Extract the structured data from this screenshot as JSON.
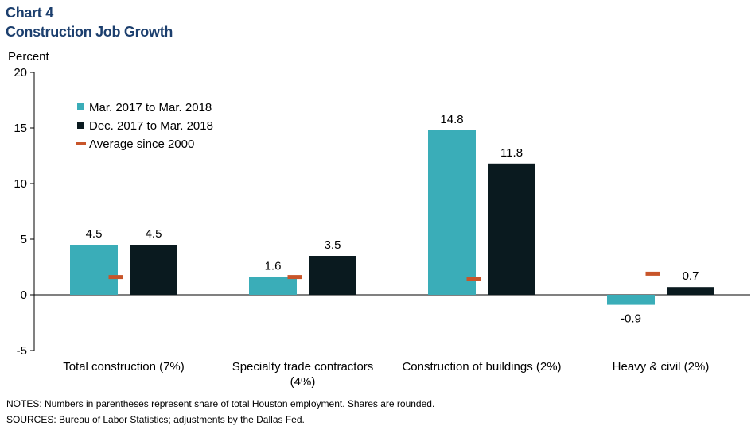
{
  "header": {
    "chart_number": "Chart 4",
    "title": "Construction Job Growth"
  },
  "chart_data": {
    "type": "bar",
    "ylabel": "Percent",
    "ylim": [
      -5,
      20
    ],
    "yticks": [
      -5,
      0,
      5,
      10,
      15,
      20
    ],
    "categories": [
      [
        "Total construction (7%)"
      ],
      [
        "Specialty trade contractors",
        "(4%)"
      ],
      [
        "Construction of buildings (2%)"
      ],
      [
        "Heavy & civil (2%)"
      ]
    ],
    "series": [
      {
        "name": "Mar. 2017 to Mar. 2018",
        "values": [
          4.5,
          1.6,
          14.8,
          -0.9
        ],
        "labels": [
          "4.5",
          "1.6",
          "14.8",
          "-0.9"
        ],
        "color": "#3aadb8"
      },
      {
        "name": "Dec. 2017 to Mar. 2018",
        "values": [
          4.5,
          3.5,
          11.8,
          0.7
        ],
        "labels": [
          "4.5",
          "3.5",
          "11.8",
          "0.7"
        ],
        "color": "#0a1a1f"
      }
    ],
    "average": {
      "name": "Average since 2000",
      "values": [
        1.6,
        1.6,
        1.4,
        1.9
      ],
      "color": "#c8552a"
    },
    "legend_position": "top-left",
    "grid": false
  },
  "notes": {
    "notes": "NOTES: Numbers in parentheses represent share of total Houston employment. Shares are rounded.",
    "sources": "SOURCES: Bureau of Labor Statistics; adjustments by the Dallas Fed."
  }
}
